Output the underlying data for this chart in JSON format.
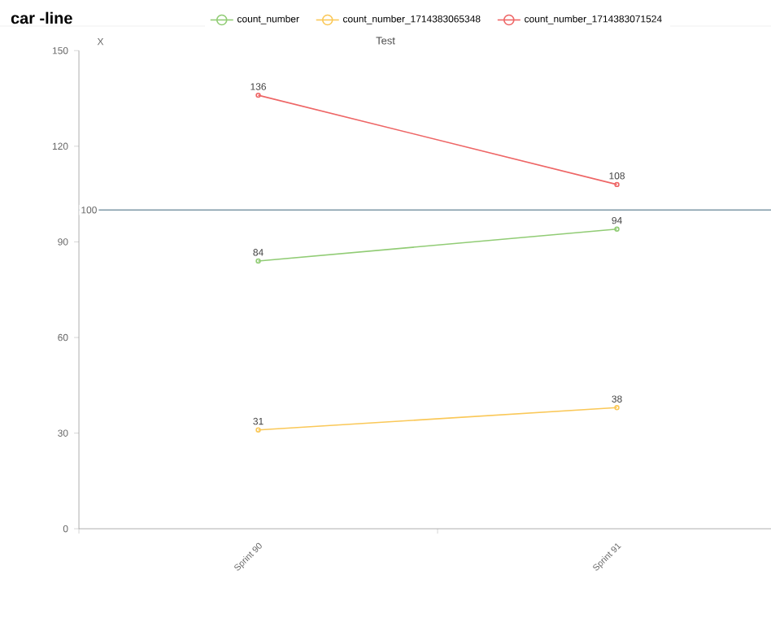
{
  "chart_data": {
    "type": "line",
    "title": "car -line",
    "subtitle": "Test",
    "ylabel": "X",
    "categories": [
      "Sprint 90",
      "Sprint 91"
    ],
    "series": [
      {
        "name": "count_number",
        "color": "#91cc75",
        "values": [
          84,
          94
        ]
      },
      {
        "name": "count_number_1714383065348",
        "color": "#fac858",
        "values": [
          31,
          38
        ]
      },
      {
        "name": "count_number_1714383071524",
        "color": "#ee6666",
        "values": [
          136,
          108
        ]
      }
    ],
    "ylim": [
      0,
      150
    ],
    "yticks": [
      0,
      30,
      60,
      90,
      120,
      150
    ],
    "ref_lines": [
      {
        "axis": "y",
        "value": 100,
        "label": "100",
        "color": "#7f99a8"
      }
    ],
    "data_labels": true,
    "legend": "top",
    "marker": "circle",
    "line_style": "solid",
    "grid": false
  }
}
